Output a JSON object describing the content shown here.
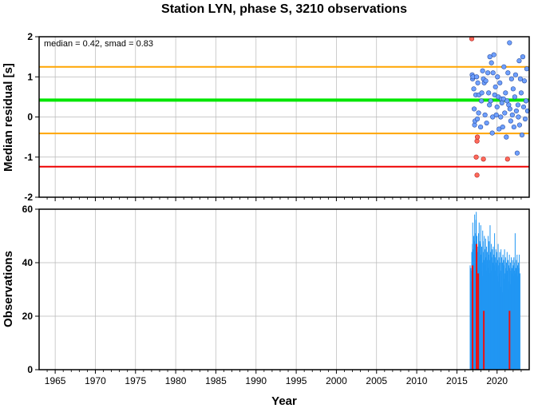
{
  "chart_data": {
    "title": "Station LYN, phase S, 3210 observations",
    "annotation": "median = 0.42, smad = 0.83",
    "xlabel": "Year",
    "xlim": [
      1963,
      2024
    ],
    "xticks": [
      1965,
      1970,
      1975,
      1980,
      1985,
      1990,
      1995,
      2000,
      2005,
      2010,
      2015,
      2020
    ],
    "xticks_minor": [
      1964,
      1966,
      1967,
      1968,
      1969,
      1971,
      1972,
      1973,
      1974,
      1976,
      1977,
      1978,
      1979,
      1981,
      1982,
      1983,
      1984,
      1986,
      1987,
      1988,
      1989,
      1991,
      1992,
      1993,
      1994,
      1996,
      1997,
      1998,
      1999,
      2001,
      2002,
      2003,
      2004,
      2006,
      2007,
      2008,
      2009,
      2011,
      2012,
      2013,
      2014,
      2016,
      2017,
      2018,
      2019,
      2021,
      2022,
      2023
    ],
    "grid": true,
    "colors": {
      "median_line": "#00e600",
      "smad_line": "#ffa500",
      "outlier_line": "#ee0000",
      "point_normal": "#6fa0ff",
      "point_outlier": "#ff6a5a",
      "bar_normal": "#2196f3",
      "bar_outlier": "#ee1111",
      "grid": "#b8b8b8"
    },
    "residuals": {
      "type": "scatter",
      "ylabel": "Median residual [s]",
      "ylim": [
        -2,
        2
      ],
      "yticks": [
        -2,
        -1,
        0,
        1,
        2
      ],
      "hlines": [
        {
          "y": 1.25,
          "role": "smad"
        },
        {
          "y": 0.42,
          "role": "median"
        },
        {
          "y": -0.41,
          "role": "smad"
        },
        {
          "y": -1.24,
          "role": "outlier"
        }
      ],
      "points_normal": [
        [
          2016.9,
          1.05
        ],
        [
          2016.95,
          0.95
        ],
        [
          2017.0,
          1.0
        ],
        [
          2017.1,
          0.7
        ],
        [
          2017.15,
          0.2
        ],
        [
          2017.2,
          -0.2
        ],
        [
          2017.25,
          -0.1
        ],
        [
          2017.35,
          0.55
        ],
        [
          2017.45,
          1.0
        ],
        [
          2017.55,
          -0.05
        ],
        [
          2017.6,
          0.85
        ],
        [
          2017.7,
          0.1
        ],
        [
          2017.75,
          0.55
        ],
        [
          2017.95,
          -0.25
        ],
        [
          2018.05,
          0.4
        ],
        [
          2018.1,
          0.6
        ],
        [
          2018.2,
          1.15
        ],
        [
          2018.3,
          0.95
        ],
        [
          2018.4,
          0.85
        ],
        [
          2018.5,
          0.05
        ],
        [
          2018.6,
          0.9
        ],
        [
          2018.7,
          -0.15
        ],
        [
          2018.85,
          1.1
        ],
        [
          2018.95,
          0.6
        ],
        [
          2019.05,
          0.3
        ],
        [
          2019.1,
          1.5
        ],
        [
          2019.2,
          0.4
        ],
        [
          2019.3,
          1.35
        ],
        [
          2019.4,
          -0.4
        ],
        [
          2019.45,
          0.0
        ],
        [
          2019.5,
          1.1
        ],
        [
          2019.6,
          1.55
        ],
        [
          2019.7,
          0.55
        ],
        [
          2019.8,
          0.75
        ],
        [
          2019.9,
          0.05
        ],
        [
          2020.0,
          0.25
        ],
        [
          2020.05,
          1.0
        ],
        [
          2020.15,
          0.5
        ],
        [
          2020.25,
          -0.3
        ],
        [
          2020.35,
          0.85
        ],
        [
          2020.45,
          0.0
        ],
        [
          2020.55,
          0.45
        ],
        [
          2020.6,
          0.35
        ],
        [
          2020.7,
          -0.25
        ],
        [
          2020.8,
          0.45
        ],
        [
          2020.85,
          1.25
        ],
        [
          2020.95,
          0.1
        ],
        [
          2021.05,
          0.6
        ],
        [
          2021.15,
          -0.5
        ],
        [
          2021.25,
          0.4
        ],
        [
          2021.35,
          1.1
        ],
        [
          2021.45,
          0.3
        ],
        [
          2021.55,
          1.85
        ],
        [
          2021.6,
          0.2
        ],
        [
          2021.7,
          -0.1
        ],
        [
          2021.8,
          0.95
        ],
        [
          2021.9,
          0.05
        ],
        [
          2022.0,
          0.7
        ],
        [
          2022.1,
          -0.25
        ],
        [
          2022.2,
          0.5
        ],
        [
          2022.3,
          1.05
        ],
        [
          2022.4,
          0.15
        ],
        [
          2022.5,
          -0.9
        ],
        [
          2022.6,
          0.3
        ],
        [
          2022.65,
          0.0
        ],
        [
          2022.75,
          1.4
        ],
        [
          2022.8,
          -0.2
        ],
        [
          2022.9,
          0.95
        ],
        [
          2023.0,
          0.6
        ],
        [
          2023.1,
          -0.45
        ],
        [
          2023.2,
          1.5
        ],
        [
          2023.3,
          0.25
        ],
        [
          2023.4,
          0.9
        ],
        [
          2023.5,
          -0.05
        ],
        [
          2023.6,
          0.4
        ],
        [
          2023.7,
          1.2
        ],
        [
          2023.8,
          0.15
        ]
      ],
      "points_outlier": [
        [
          2016.85,
          1.95
        ],
        [
          2017.5,
          -0.6
        ],
        [
          2017.55,
          -0.5
        ],
        [
          2017.4,
          -1.0
        ],
        [
          2017.5,
          -1.45
        ],
        [
          2018.3,
          -1.05
        ],
        [
          2021.3,
          -1.05
        ]
      ]
    },
    "observations": {
      "type": "bar",
      "ylabel": "Observations",
      "ylim": [
        0,
        60
      ],
      "yticks": [
        0,
        20,
        40,
        60
      ],
      "start": 2016.6,
      "step": 0.04,
      "bar_width": 0.05,
      "values": [
        39,
        37,
        38,
        33,
        37,
        44,
        40,
        47,
        55,
        45,
        42,
        50,
        40,
        48,
        58,
        51,
        45,
        47,
        56,
        59,
        44,
        50,
        42,
        46,
        38,
        44,
        51,
        36,
        55,
        42,
        48,
        38,
        47,
        54,
        43,
        37,
        46,
        40,
        35,
        52,
        48,
        44,
        36,
        41,
        50,
        39,
        45,
        34,
        49,
        42,
        37,
        46,
        33,
        44,
        41,
        38,
        50,
        35,
        43,
        48,
        36,
        41,
        54,
        39,
        44,
        37,
        47,
        42,
        33,
        45,
        40,
        38,
        46,
        36,
        43,
        39,
        51,
        34,
        42,
        37,
        45,
        40,
        30,
        44,
        38,
        41,
        35,
        47,
        39,
        33,
        42,
        36,
        44,
        40,
        37,
        31,
        45,
        38,
        42,
        35,
        40,
        29,
        43,
        37,
        41,
        34,
        39,
        45,
        36,
        32,
        42,
        38,
        35,
        40,
        34,
        44,
        37,
        30,
        41,
        36,
        39,
        33,
        43,
        38,
        35,
        40,
        32,
        37,
        42,
        34,
        38,
        36,
        41,
        31,
        39,
        35,
        42,
        37,
        33,
        40,
        51,
        36,
        38,
        34,
        41,
        37,
        43,
        35,
        39,
        33,
        40,
        36,
        38,
        43,
        14,
        36
      ],
      "outliers": [
        {
          "x": 2016.85,
          "value": 39
        },
        {
          "x": 2017.35,
          "value": 47
        },
        {
          "x": 2017.55,
          "value": 36
        },
        {
          "x": 2018.25,
          "value": 22
        },
        {
          "x": 2021.45,
          "value": 22
        }
      ]
    }
  }
}
